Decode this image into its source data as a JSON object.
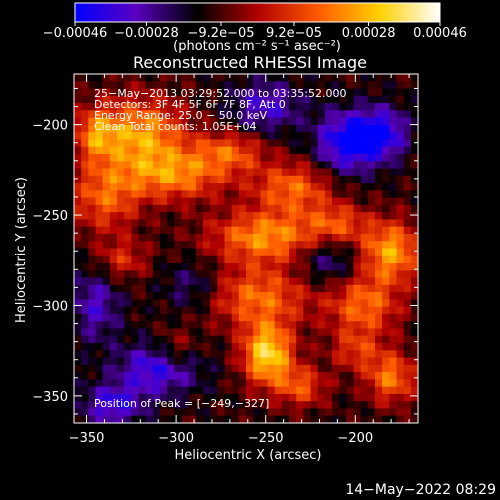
{
  "chart_data": {
    "type": "heatmap",
    "title": "Reconstructed RHESSI Image",
    "xlabel": "Heliocentric X (arcsec)",
    "ylabel": "Heliocentric Y (arcsec)",
    "xlim": [
      -357,
      -165
    ],
    "ylim": [
      -365,
      -172
    ],
    "xticks": [
      -350,
      -300,
      -250,
      -200
    ],
    "xtick_labels": [
      "−350",
      "−300",
      "−250",
      "−200"
    ],
    "yticks": [
      -200,
      -250,
      -300,
      -350
    ],
    "ytick_labels": [
      "−200",
      "−250",
      "−300",
      "−350"
    ],
    "colorbar": {
      "min": -0.00046,
      "max": 0.00046,
      "colormap": "blue-purple-red-yellow-white",
      "colors": [
        "#0000ff",
        "#5a00c0",
        "#000000",
        "#b00000",
        "#ff5a00",
        "#ffd000",
        "#ffffff"
      ],
      "ticks": [
        -0.00046,
        -0.00028,
        -9.2e-05,
        9.2e-05,
        0.00028,
        0.00046
      ],
      "tick_labels": [
        "−0.00046",
        "−0.00028",
        "−9.2e−05",
        "9.2e−05",
        "0.00028",
        "0.00046"
      ],
      "units_label": "(photons cm⁻² s⁻¹ asec⁻²)"
    },
    "annotations": [
      "25−May−2013 03:29:52.000 to 03:35:52.000",
      "Detectors: 3F 4F 5F 6F 7F 8F, Att 0",
      "Energy Range: 25.0 − 50.0 keV",
      "Clean    Total counts: 1.05E+04"
    ],
    "peak_label": "Position of Peak = [−249,−327]",
    "peak": [
      -249,
      -327
    ],
    "sources": [
      {
        "x": -320,
        "y": -205,
        "sx": 18,
        "sy": 14,
        "amp": 0.00036
      },
      {
        "x": -300,
        "y": -228,
        "sx": 20,
        "sy": 10,
        "amp": 0.0003
      },
      {
        "x": -340,
        "y": -240,
        "sx": 14,
        "sy": 14,
        "amp": 0.00026
      },
      {
        "x": -330,
        "y": -275,
        "sx": 10,
        "sy": 8,
        "amp": 0.00018
      },
      {
        "x": -270,
        "y": -215,
        "sx": 14,
        "sy": 8,
        "amp": 0.00024
      },
      {
        "x": -235,
        "y": -235,
        "sx": 16,
        "sy": 10,
        "amp": 0.00028
      },
      {
        "x": -250,
        "y": -262,
        "sx": 22,
        "sy": 10,
        "amp": 0.00034
      },
      {
        "x": -210,
        "y": -255,
        "sx": 12,
        "sy": 8,
        "amp": 0.00022
      },
      {
        "x": -180,
        "y": -270,
        "sx": 12,
        "sy": 12,
        "amp": 0.00036
      },
      {
        "x": -255,
        "y": -295,
        "sx": 22,
        "sy": 12,
        "amp": 0.00028
      },
      {
        "x": -195,
        "y": -300,
        "sx": 14,
        "sy": 12,
        "amp": 0.00028
      },
      {
        "x": -249,
        "y": -327,
        "sx": 10,
        "sy": 12,
        "amp": 0.00046
      },
      {
        "x": -230,
        "y": -345,
        "sx": 10,
        "sy": 8,
        "amp": 0.00024
      },
      {
        "x": -180,
        "y": -340,
        "sx": 10,
        "sy": 10,
        "amp": 0.0003
      },
      {
        "x": -200,
        "y": -325,
        "sx": 10,
        "sy": 8,
        "amp": 0.00018
      },
      {
        "x": -300,
        "y": -325,
        "sx": 8,
        "sy": 8,
        "amp": 0.00016
      },
      {
        "x": -345,
        "y": -205,
        "sx": 8,
        "sy": 10,
        "amp": 0.00024
      },
      {
        "x": -205,
        "y": -210,
        "sx": 12,
        "sy": 12,
        "amp": -0.00034
      },
      {
        "x": -185,
        "y": -205,
        "sx": 10,
        "sy": 10,
        "amp": -0.0003
      },
      {
        "x": -250,
        "y": -190,
        "sx": 14,
        "sy": 10,
        "amp": -0.00022
      },
      {
        "x": -310,
        "y": -335,
        "sx": 16,
        "sy": 10,
        "amp": -0.00028
      },
      {
        "x": -335,
        "y": -355,
        "sx": 12,
        "sy": 8,
        "amp": -0.00026
      },
      {
        "x": -215,
        "y": -275,
        "sx": 12,
        "sy": 10,
        "amp": -0.00018
      },
      {
        "x": -290,
        "y": -290,
        "sx": 12,
        "sy": 10,
        "amp": -0.00016
      },
      {
        "x": -345,
        "y": -300,
        "sx": 10,
        "sy": 14,
        "amp": -0.0002
      }
    ]
  },
  "footer": {
    "timestamp": "14−May−2022 08:29"
  }
}
